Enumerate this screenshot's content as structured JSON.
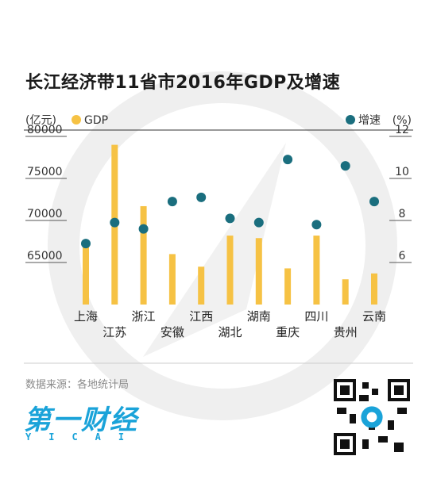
{
  "title": "长江经济带11省市2016年GDP及增速",
  "source": "数据来源：各地统计局",
  "brand": {
    "name": "第一财经",
    "sub": "YICAI"
  },
  "colors": {
    "bar": "#F6C244",
    "dot": "#1A6E7E",
    "accent": "#1AA3D9"
  },
  "chart_data": {
    "type": "bar",
    "categories": [
      "上海",
      "江苏",
      "浙江",
      "安徽",
      "江西",
      "湖北",
      "湖南",
      "重庆",
      "四川",
      "贵州",
      "云南"
    ],
    "series": [
      {
        "name": "GDP",
        "axis": "left",
        "unit": "(亿元)",
        "values": [
          67000,
          79000,
          71700,
          66000,
          64500,
          68200,
          67900,
          64300,
          68200,
          63000,
          63700
        ]
      },
      {
        "name": "增速",
        "axis": "right",
        "unit": "(%)",
        "values": [
          6.9,
          7.9,
          7.6,
          8.9,
          9.1,
          8.1,
          7.9,
          10.9,
          7.8,
          10.6,
          8.9
        ]
      }
    ],
    "left_axis": {
      "label": "(亿元)",
      "ticks": [
        65000,
        70000,
        75000,
        80000
      ],
      "range": [
        60000,
        80000
      ]
    },
    "right_axis": {
      "label": "(%)",
      "ticks": [
        6,
        8,
        10,
        12
      ],
      "range": [
        4,
        12
      ]
    }
  }
}
